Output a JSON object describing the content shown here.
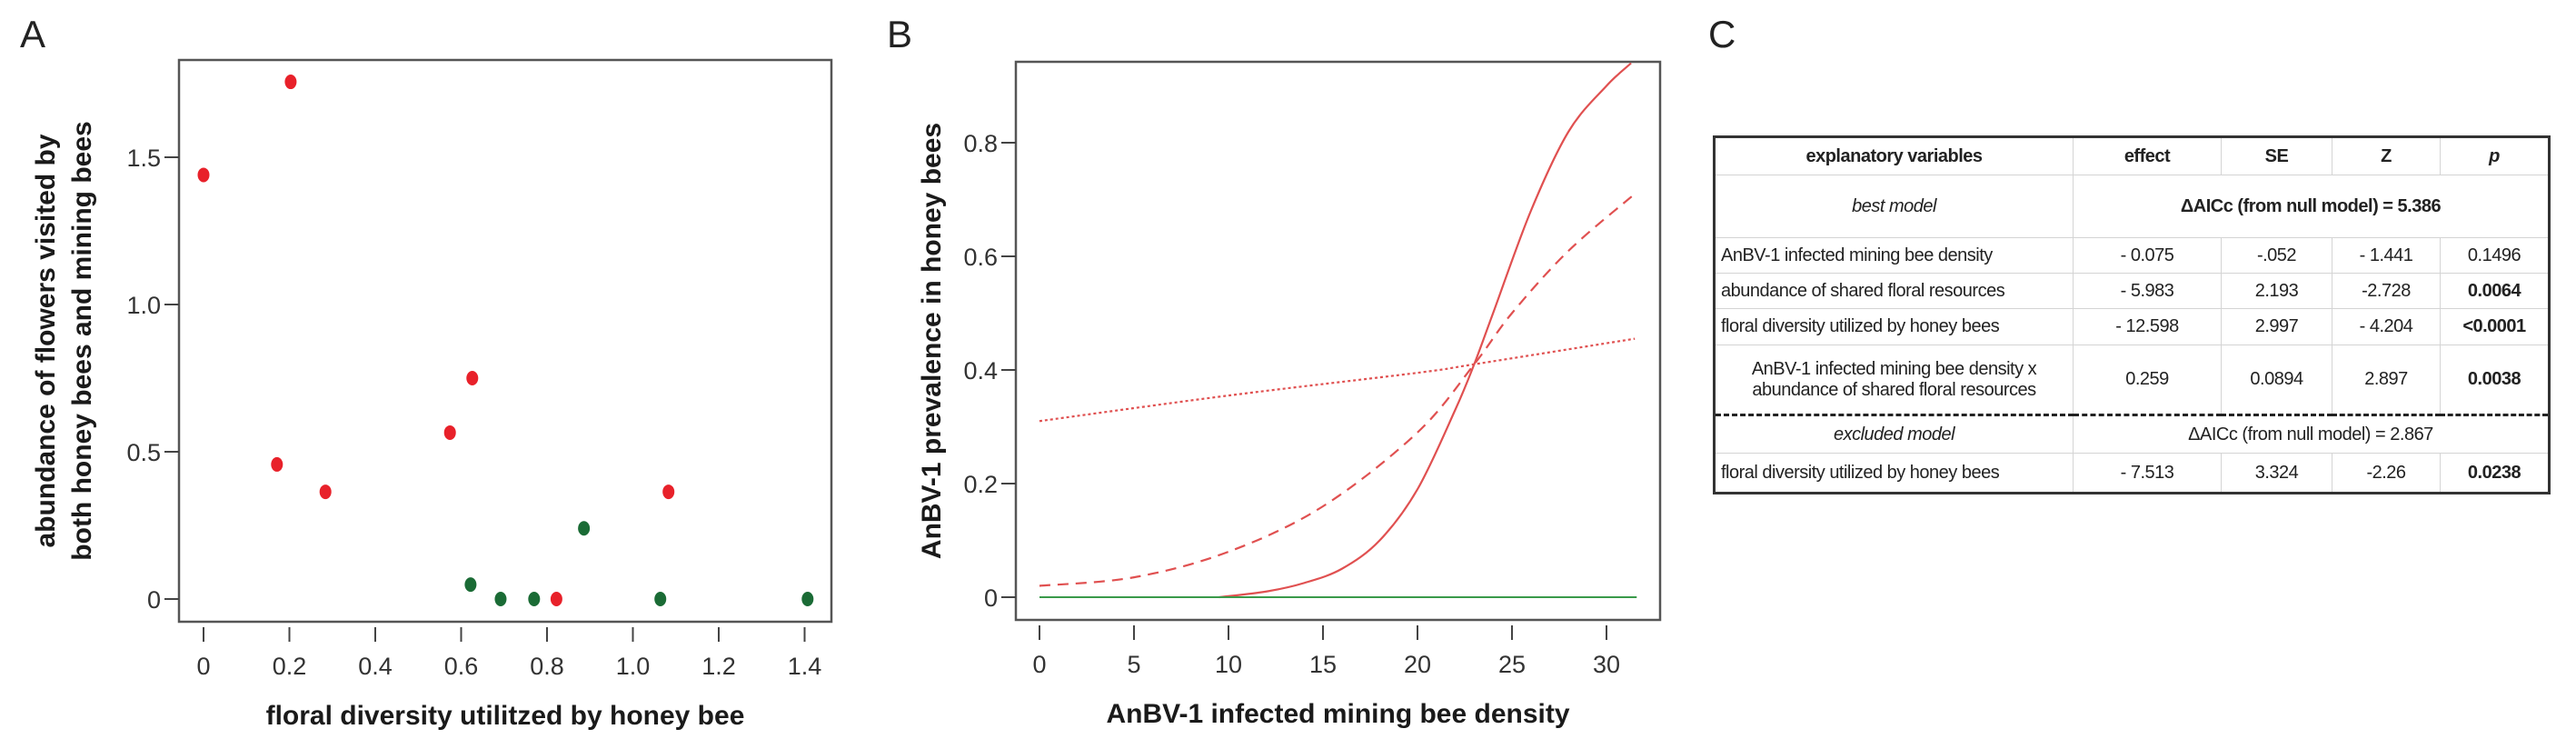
{
  "panels": {
    "a": {
      "label": "A"
    },
    "b": {
      "label": "B"
    },
    "c": {
      "label": "C"
    }
  },
  "chart_data": [
    {
      "panel": "A",
      "type": "scatter",
      "title": "",
      "xlabel": "floral diversity utilitzed by honey bee",
      "ylabel": "abundance of flowers visited by both honey bees and mining bees",
      "ylabel_lines": [
        "abundance of flowers visited by",
        "both honey bees and mining bees"
      ],
      "xlim": [
        -0.06,
        1.47
      ],
      "ylim": [
        -0.08,
        1.83
      ],
      "xticks": [
        0,
        0.2,
        0.4,
        0.6,
        0.8,
        1.0,
        1.2,
        1.4
      ],
      "xtick_labels": [
        "0",
        "0.2",
        "0.4",
        "0.6",
        "0.8",
        "1.0",
        "1.2",
        "1.4"
      ],
      "yticks": [
        0,
        0.5,
        1.0,
        1.5
      ],
      "ytick_labels": [
        "0",
        "0.5",
        "1.0",
        "1.5"
      ],
      "grid": false,
      "series": [
        {
          "name": "red",
          "color": "#e8212a",
          "points": [
            [
              0.0,
              1.44
            ],
            [
              0.203,
              1.756
            ],
            [
              0.171,
              0.457
            ],
            [
              0.284,
              0.364
            ],
            [
              0.574,
              0.565
            ],
            [
              0.626,
              0.75
            ],
            [
              0.822,
              0.0
            ],
            [
              1.083,
              0.364
            ]
          ]
        },
        {
          "name": "green",
          "color": "#1a6b35",
          "points": [
            [
              0.622,
              0.049
            ],
            [
              0.692,
              0.0
            ],
            [
              0.77,
              0.0
            ],
            [
              0.886,
              0.24
            ],
            [
              1.064,
              0.0
            ],
            [
              1.407,
              0.0
            ]
          ]
        }
      ]
    },
    {
      "panel": "B",
      "type": "line",
      "title": "",
      "xlabel": "AnBV-1 infected mining bee density",
      "ylabel": "AnBV-1 prevalence in honey bees",
      "xlim": [
        -1.2,
        33.1
      ],
      "ylim": [
        -0.04,
        0.94
      ],
      "xticks": [
        0,
        5,
        10,
        15,
        20,
        25,
        30
      ],
      "xtick_labels": [
        "0",
        "5",
        "10",
        "15",
        "20",
        "25",
        "30"
      ],
      "yticks": [
        0,
        0.2,
        0.4,
        0.6,
        0.8
      ],
      "ytick_labels": [
        "0",
        "0.2",
        "0.4",
        "0.6",
        "0.8"
      ],
      "grid": false,
      "series": [
        {
          "name": "solid",
          "style": "solid",
          "color": "#e05050",
          "x": [
            9.5,
            12,
            14,
            16,
            18,
            20,
            22,
            23,
            24,
            26,
            28,
            30,
            31.3
          ],
          "y": [
            0.0,
            0.01,
            0.025,
            0.05,
            0.1,
            0.19,
            0.33,
            0.41,
            0.5,
            0.68,
            0.82,
            0.9,
            0.94
          ]
        },
        {
          "name": "dashed",
          "style": "dashed",
          "color": "#e05050",
          "x": [
            0,
            5,
            10,
            15,
            20,
            23,
            25,
            28,
            31.5
          ],
          "y": [
            0.02,
            0.035,
            0.08,
            0.16,
            0.29,
            0.41,
            0.5,
            0.61,
            0.71
          ]
        },
        {
          "name": "dotted",
          "style": "dotted",
          "color": "#e05050",
          "x": [
            0,
            10,
            20,
            23,
            31.5
          ],
          "y": [
            0.31,
            0.355,
            0.395,
            0.41,
            0.455
          ]
        },
        {
          "name": "green-baseline",
          "style": "solid",
          "color": "#3a9a4a",
          "x": [
            0,
            31.6
          ],
          "y": [
            0.0,
            0.0
          ]
        }
      ]
    },
    {
      "panel": "C",
      "type": "table",
      "columns": [
        "explanatory variables",
        "effect",
        "SE",
        "Z",
        "p"
      ],
      "sections": [
        {
          "name": "best model",
          "aicc": "ΔAICc (from null model) = 5.386",
          "rows": [
            [
              "AnBV-1 infected mining bee density",
              "- 0.075",
              "-.052",
              "- 1.441",
              "0.1496"
            ],
            [
              "abundance of shared floral resources",
              "- 5.983",
              "2.193",
              "-2.728",
              "0.0064"
            ],
            [
              "floral diversity utilized by honey bees",
              "- 12.598",
              "2.997",
              "- 4.204",
              "<0.0001"
            ],
            [
              "AnBV-1 infected mining bee density x abundance of shared floral resources",
              "0.259",
              "0.0894",
              "2.897",
              "0.0038"
            ]
          ]
        },
        {
          "name": "excluded model",
          "aicc": "ΔAICc (from null model) = 2.867",
          "rows": [
            [
              "floral diversity utilized by honey bees",
              "- 7.513",
              "3.324",
              "-2.26",
              "0.0238"
            ]
          ]
        }
      ]
    }
  ],
  "table": {
    "headers": {
      "variables": "explanatory variables",
      "effect": "effect",
      "se": "SE",
      "z": "Z",
      "p": "p"
    },
    "best": {
      "label": "best model",
      "aicc": "ΔAICc (from null model) = 5.386",
      "rows": [
        {
          "var": "AnBV-1 infected mining bee density",
          "effect": "- 0.075",
          "se": "-.052",
          "z": "- 1.441",
          "p": "0.1496",
          "p_bold": false
        },
        {
          "var": "abundance of shared floral resources",
          "effect": "- 5.983",
          "se": "2.193",
          "z": "-2.728",
          "p": "0.0064",
          "p_bold": true
        },
        {
          "var": "floral diversity utilized by honey bees",
          "effect": "- 12.598",
          "se": "2.997",
          "z": "- 4.204",
          "p": "<0.0001",
          "p_bold": true
        },
        {
          "var_line1": "AnBV-1 infected mining bee density x",
          "var_line2": "abundance of shared floral resources",
          "effect": "0.259",
          "se": "0.0894",
          "z": "2.897",
          "p": "0.0038",
          "p_bold": true
        }
      ]
    },
    "excluded": {
      "label": "excluded model",
      "aicc": "ΔAICc (from null model) = 2.867",
      "rows": [
        {
          "var": "floral diversity utilized by honey bees",
          "effect": "- 7.513",
          "se": "3.324",
          "z": "-2.26",
          "p": "0.0238",
          "p_bold": true
        }
      ]
    }
  }
}
